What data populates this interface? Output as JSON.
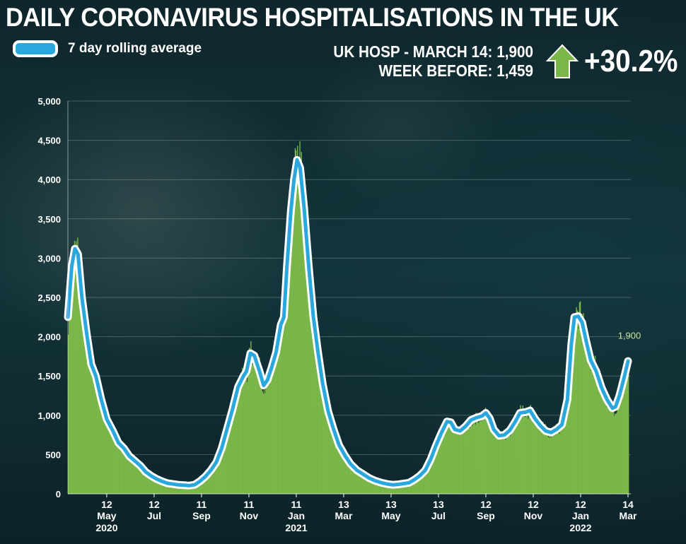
{
  "header": {
    "title": "DAILY CORONAVIRUS HOSPITALISATIONS IN THE UK",
    "legend_label": "7 day rolling average",
    "stat_line1": "UK HOSP - MARCH 14: 1,900",
    "stat_line2": "WEEK BEFORE: 1,459",
    "change_text": "+30.2%"
  },
  "colors": {
    "bars": "#7ab648",
    "line": "#2aa7dd",
    "line_outline": "#ffffff",
    "arrow": "#7ab648",
    "annotation": "#c9e6a0"
  },
  "chart_data": {
    "type": "bar",
    "title": "DAILY CORONAVIRUS HOSPITALISATIONS IN THE UK",
    "xlabel": "",
    "ylabel": "",
    "ylim": [
      0,
      5000
    ],
    "xlim": [
      "2020-03-23",
      "2022-03-14"
    ],
    "grid": true,
    "legend": "top-left",
    "yticks": [
      0,
      500,
      1000,
      1500,
      2000,
      2500,
      3000,
      3500,
      4000,
      4500,
      5000
    ],
    "ytick_labels": [
      "0",
      "500",
      "1,000",
      "1,500",
      "2,000",
      "2,500",
      "3,000",
      "3,500",
      "4,000",
      "4,500",
      "5,000"
    ],
    "xticks": [
      {
        "date": "2020-05-12",
        "day": "12",
        "month": "May",
        "year": "2020"
      },
      {
        "date": "2020-07-12",
        "day": "12",
        "month": "Jul",
        "year": ""
      },
      {
        "date": "2020-09-11",
        "day": "11",
        "month": "Sep",
        "year": ""
      },
      {
        "date": "2020-11-11",
        "day": "11",
        "month": "Nov",
        "year": ""
      },
      {
        "date": "2021-01-11",
        "day": "11",
        "month": "Jan",
        "year": "2021"
      },
      {
        "date": "2021-03-13",
        "day": "13",
        "month": "Mar",
        "year": ""
      },
      {
        "date": "2021-05-13",
        "day": "13",
        "month": "May",
        "year": ""
      },
      {
        "date": "2021-07-13",
        "day": "13",
        "month": "Jul",
        "year": ""
      },
      {
        "date": "2021-09-12",
        "day": "12",
        "month": "Sep",
        "year": ""
      },
      {
        "date": "2021-11-12",
        "day": "12",
        "month": "Nov",
        "year": ""
      },
      {
        "date": "2022-01-12",
        "day": "12",
        "month": "Jan",
        "year": "2022"
      },
      {
        "date": "2022-03-14",
        "day": "14",
        "month": "Mar",
        "year": ""
      }
    ],
    "annotation": {
      "date": "2022-03-14",
      "value": 1900,
      "text": "1,900"
    },
    "series": [
      {
        "name": "7 day rolling average",
        "type": "line",
        "points": [
          [
            "2020-03-23",
            2250
          ],
          [
            "2020-03-28",
            2900
          ],
          [
            "2020-04-01",
            3120
          ],
          [
            "2020-04-05",
            3050
          ],
          [
            "2020-04-10",
            2500
          ],
          [
            "2020-04-16",
            2050
          ],
          [
            "2020-04-22",
            1650
          ],
          [
            "2020-04-28",
            1500
          ],
          [
            "2020-05-05",
            1200
          ],
          [
            "2020-05-12",
            950
          ],
          [
            "2020-05-20",
            800
          ],
          [
            "2020-05-27",
            650
          ],
          [
            "2020-06-03",
            580
          ],
          [
            "2020-06-10",
            480
          ],
          [
            "2020-06-17",
            420
          ],
          [
            "2020-06-24",
            360
          ],
          [
            "2020-07-01",
            280
          ],
          [
            "2020-07-08",
            230
          ],
          [
            "2020-07-15",
            190
          ],
          [
            "2020-07-22",
            160
          ],
          [
            "2020-07-29",
            135
          ],
          [
            "2020-08-05",
            125
          ],
          [
            "2020-08-12",
            115
          ],
          [
            "2020-08-19",
            110
          ],
          [
            "2020-08-26",
            105
          ],
          [
            "2020-09-02",
            115
          ],
          [
            "2020-09-09",
            160
          ],
          [
            "2020-09-16",
            220
          ],
          [
            "2020-09-23",
            300
          ],
          [
            "2020-09-30",
            400
          ],
          [
            "2020-10-07",
            580
          ],
          [
            "2020-10-14",
            830
          ],
          [
            "2020-10-21",
            1080
          ],
          [
            "2020-10-28",
            1360
          ],
          [
            "2020-11-04",
            1500
          ],
          [
            "2020-11-08",
            1560
          ],
          [
            "2020-11-13",
            1790
          ],
          [
            "2020-11-18",
            1760
          ],
          [
            "2020-11-25",
            1550
          ],
          [
            "2020-11-30",
            1380
          ],
          [
            "2020-12-05",
            1450
          ],
          [
            "2020-12-10",
            1600
          ],
          [
            "2020-12-16",
            1800
          ],
          [
            "2020-12-22",
            2150
          ],
          [
            "2020-12-26",
            2250
          ],
          [
            "2020-12-30",
            2900
          ],
          [
            "2021-01-04",
            3600
          ],
          [
            "2021-01-08",
            4000
          ],
          [
            "2021-01-12",
            4250
          ],
          [
            "2021-01-16",
            4150
          ],
          [
            "2021-01-21",
            3650
          ],
          [
            "2021-01-27",
            2900
          ],
          [
            "2021-02-02",
            2250
          ],
          [
            "2021-02-08",
            1800
          ],
          [
            "2021-02-14",
            1400
          ],
          [
            "2021-02-21",
            1050
          ],
          [
            "2021-02-28",
            820
          ],
          [
            "2021-03-07",
            620
          ],
          [
            "2021-03-15",
            480
          ],
          [
            "2021-03-22",
            380
          ],
          [
            "2021-03-30",
            300
          ],
          [
            "2021-04-07",
            250
          ],
          [
            "2021-04-15",
            200
          ],
          [
            "2021-04-23",
            165
          ],
          [
            "2021-05-01",
            140
          ],
          [
            "2021-05-08",
            125
          ],
          [
            "2021-05-15",
            115
          ],
          [
            "2021-05-22",
            120
          ],
          [
            "2021-05-29",
            130
          ],
          [
            "2021-06-05",
            140
          ],
          [
            "2021-06-12",
            180
          ],
          [
            "2021-06-19",
            230
          ],
          [
            "2021-06-26",
            300
          ],
          [
            "2021-07-03",
            440
          ],
          [
            "2021-07-10",
            620
          ],
          [
            "2021-07-17",
            780
          ],
          [
            "2021-07-24",
            920
          ],
          [
            "2021-07-29",
            910
          ],
          [
            "2021-08-03",
            820
          ],
          [
            "2021-08-10",
            800
          ],
          [
            "2021-08-17",
            860
          ],
          [
            "2021-08-24",
            940
          ],
          [
            "2021-08-31",
            970
          ],
          [
            "2021-09-07",
            990
          ],
          [
            "2021-09-12",
            1030
          ],
          [
            "2021-09-17",
            960
          ],
          [
            "2021-09-22",
            820
          ],
          [
            "2021-09-29",
            740
          ],
          [
            "2021-10-06",
            750
          ],
          [
            "2021-10-13",
            810
          ],
          [
            "2021-10-20",
            920
          ],
          [
            "2021-10-26",
            1030
          ],
          [
            "2021-11-02",
            1040
          ],
          [
            "2021-11-08",
            1060
          ],
          [
            "2021-11-14",
            960
          ],
          [
            "2021-11-21",
            870
          ],
          [
            "2021-11-28",
            800
          ],
          [
            "2021-12-05",
            780
          ],
          [
            "2021-12-12",
            820
          ],
          [
            "2021-12-19",
            880
          ],
          [
            "2021-12-26",
            1200
          ],
          [
            "2021-12-31",
            1900
          ],
          [
            "2022-01-04",
            2250
          ],
          [
            "2022-01-09",
            2260
          ],
          [
            "2022-01-14",
            2180
          ],
          [
            "2022-01-19",
            1950
          ],
          [
            "2022-01-25",
            1700
          ],
          [
            "2022-02-01",
            1560
          ],
          [
            "2022-02-08",
            1350
          ],
          [
            "2022-02-15",
            1200
          ],
          [
            "2022-02-22",
            1090
          ],
          [
            "2022-02-26",
            1110
          ],
          [
            "2022-03-03",
            1250
          ],
          [
            "2022-03-09",
            1480
          ],
          [
            "2022-03-14",
            1690
          ]
        ]
      }
    ]
  }
}
